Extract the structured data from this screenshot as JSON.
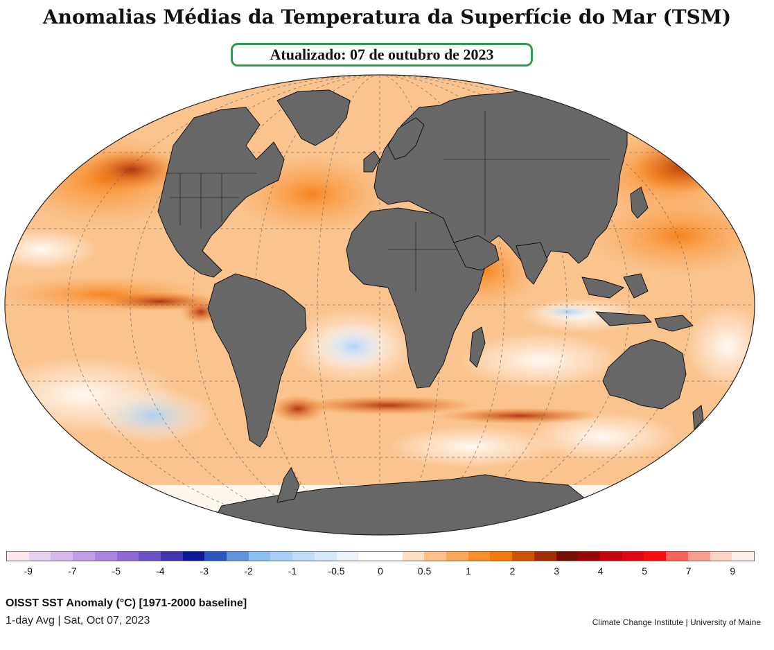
{
  "title": "Anomalias Médias da Temperatura da Superfície do Mar (TSM)",
  "updated": "Atualizado: 07 de outubro de 2023",
  "map": {
    "projection": "Robinson",
    "land_color": "#676767",
    "coast_color": "#111111"
  },
  "colorbar": {
    "colors": [
      "#fbe9ee",
      "#e7d3ee",
      "#d4bbec",
      "#bfa0e7",
      "#aa86e0",
      "#8e6ad6",
      "#6b52c4",
      "#4234ad",
      "#101a95",
      "#2d55bd",
      "#6493dc",
      "#8ebff2",
      "#a9d0f6",
      "#c2dcf7",
      "#d9e8f8",
      "#ecf3fb",
      "#ffffff",
      "#ffffff",
      "#fde0c8",
      "#fdc08c",
      "#fca85d",
      "#f98f2e",
      "#f47a0b",
      "#cf5408",
      "#a32d07",
      "#741005",
      "#98060a",
      "#c0080e",
      "#db0a14",
      "#f50f14",
      "#f86459",
      "#f99f94",
      "#fbd4c8",
      "#fcefe9"
    ],
    "tick_labels": [
      "-9",
      "-7",
      "-5",
      "-4",
      "-3",
      "-2",
      "-1",
      "-0.5",
      "0",
      "0.5",
      "1",
      "2",
      "3",
      "4",
      "5",
      "7",
      "9"
    ]
  },
  "caption": {
    "line1": "OISST SST Anomaly (°C) [1971-2000 baseline]",
    "line2": "1-day Avg | Sat, Oct 07, 2023",
    "credit": "Climate Change Institute | University of Maine"
  }
}
